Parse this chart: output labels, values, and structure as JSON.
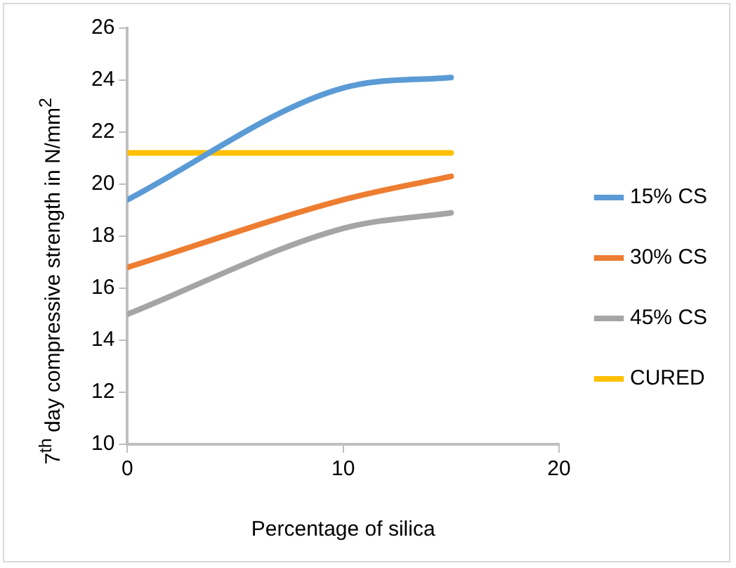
{
  "chart_data": {
    "type": "line",
    "xlabel": "Percentage of silica",
    "ylabel": "7$^{th}$ day compressive strength in N/mm$^{2}$",
    "xlim": [
      0,
      20
    ],
    "xticks": [
      0,
      10,
      20
    ],
    "ylim": [
      10,
      26
    ],
    "yticks": [
      10,
      12,
      14,
      16,
      18,
      20,
      22,
      24,
      26
    ],
    "grid": false,
    "legend": "right",
    "marker": "none",
    "line_style": "solid",
    "series": [
      {
        "name": "15% CS",
        "color": "#5b9bd5",
        "x": [
          0,
          10,
          15
        ],
        "values": [
          19.4,
          23.7,
          24.1
        ]
      },
      {
        "name": "30% CS",
        "color": "#ed7d31",
        "x": [
          0,
          10,
          15
        ],
        "values": [
          16.8,
          19.4,
          20.3
        ]
      },
      {
        "name": "45% CS",
        "color": "#a5a5a5",
        "x": [
          0,
          10,
          15
        ],
        "values": [
          15.0,
          18.3,
          18.9
        ]
      },
      {
        "name": "CURED",
        "color": "#ffc000",
        "x": [
          0,
          15
        ],
        "values": [
          21.2,
          21.2
        ]
      }
    ]
  }
}
